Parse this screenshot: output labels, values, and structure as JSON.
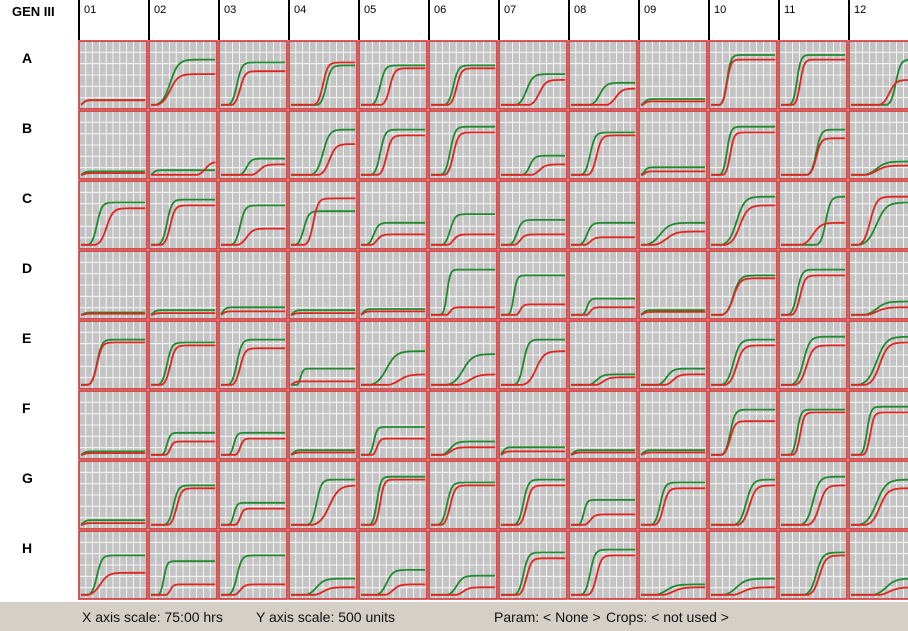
{
  "corner_label": "GEN III",
  "columns": [
    "01",
    "02",
    "03",
    "04",
    "05",
    "06",
    "07",
    "08",
    "09",
    "10",
    "11",
    "12"
  ],
  "rows": [
    "A",
    "B",
    "C",
    "D",
    "E",
    "F",
    "G",
    "H"
  ],
  "status": {
    "x_axis": "X axis scale: 75:00 hrs",
    "y_axis": "Y axis scale: 500 units",
    "param": "Param: < None >",
    "crops": "Crops: < not used >"
  },
  "colors": {
    "cell_bg": "#c4c4c4",
    "grid_line": "#ffffff",
    "cell_border": "#d23434",
    "curve_green": "#1f8a2e",
    "curve_red": "#e0251f",
    "status_bg": "#d4d0c8"
  },
  "curves": {
    "A": [
      [
        [
          0.03,
          0.1,
          0.1
        ],
        [
          0.03,
          0.1,
          0.1
        ]
      ],
      [
        [
          0.3,
          0.8,
          0.25
        ],
        [
          0.3,
          0.55,
          0.25
        ]
      ],
      [
        [
          0.25,
          0.75,
          0.15
        ],
        [
          0.3,
          0.6,
          0.15
        ]
      ],
      [
        [
          0.55,
          0.7,
          0.15
        ],
        [
          0.5,
          0.75,
          0.15
        ]
      ],
      [
        [
          0.3,
          0.7,
          0.15
        ],
        [
          0.45,
          0.65,
          0.15
        ]
      ],
      [
        [
          0.35,
          0.7,
          0.15
        ],
        [
          0.4,
          0.65,
          0.15
        ]
      ],
      [
        [
          0.4,
          0.55,
          0.2
        ],
        [
          0.6,
          0.45,
          0.2
        ]
      ],
      [
        [
          0.45,
          0.4,
          0.2
        ],
        [
          0.7,
          0.3,
          0.2
        ]
      ],
      [
        [
          0.05,
          0.12,
          0.1
        ],
        [
          0.05,
          0.08,
          0.1
        ]
      ],
      [
        [
          0.25,
          0.88,
          0.12
        ],
        [
          0.25,
          0.8,
          0.12
        ]
      ],
      [
        [
          0.25,
          0.88,
          0.12
        ],
        [
          0.3,
          0.8,
          0.12
        ]
      ],
      [
        [
          0.7,
          0.8,
          0.15
        ],
        [
          0.6,
          0.45,
          0.2
        ]
      ]
    ],
    "B": [
      [
        [
          0.03,
          0.08,
          0.1
        ],
        [
          0.03,
          0.05,
          0.1
        ]
      ],
      [
        [
          0.03,
          0.1,
          0.1
        ],
        [
          0.85,
          0.25,
          0.2
        ]
      ],
      [
        [
          0.4,
          0.3,
          0.15
        ],
        [
          0.6,
          0.2,
          0.2
        ]
      ],
      [
        [
          0.5,
          0.8,
          0.2
        ],
        [
          0.6,
          0.55,
          0.2
        ]
      ],
      [
        [
          0.3,
          0.8,
          0.15
        ],
        [
          0.4,
          0.7,
          0.15
        ]
      ],
      [
        [
          0.3,
          0.85,
          0.15
        ],
        [
          0.35,
          0.75,
          0.15
        ]
      ],
      [
        [
          0.45,
          0.35,
          0.15
        ],
        [
          0.6,
          0.2,
          0.2
        ]
      ],
      [
        [
          0.3,
          0.75,
          0.15
        ],
        [
          0.4,
          0.7,
          0.15
        ]
      ],
      [
        [
          0.05,
          0.15,
          0.1
        ],
        [
          0.05,
          0.08,
          0.1
        ]
      ],
      [
        [
          0.25,
          0.85,
          0.12
        ],
        [
          0.3,
          0.75,
          0.12
        ]
      ],
      [
        [
          0.55,
          0.8,
          0.15
        ],
        [
          0.55,
          0.65,
          0.15
        ]
      ],
      [
        [
          0.4,
          0.25,
          0.3
        ],
        [
          0.4,
          0.18,
          0.3
        ]
      ]
    ],
    "C": [
      [
        [
          0.25,
          0.75,
          0.15
        ],
        [
          0.4,
          0.65,
          0.2
        ]
      ],
      [
        [
          0.25,
          0.8,
          0.15
        ],
        [
          0.3,
          0.7,
          0.15
        ]
      ],
      [
        [
          0.3,
          0.7,
          0.15
        ],
        [
          0.4,
          0.3,
          0.2
        ]
      ],
      [
        [
          0.2,
          0.6,
          0.15
        ],
        [
          0.35,
          0.82,
          0.15
        ]
      ],
      [
        [
          0.2,
          0.4,
          0.15
        ],
        [
          0.25,
          0.2,
          0.15
        ]
      ],
      [
        [
          0.3,
          0.55,
          0.15
        ],
        [
          0.35,
          0.2,
          0.15
        ]
      ],
      [
        [
          0.25,
          0.45,
          0.15
        ],
        [
          0.3,
          0.2,
          0.15
        ]
      ],
      [
        [
          0.25,
          0.4,
          0.15
        ],
        [
          0.3,
          0.15,
          0.15
        ]
      ],
      [
        [
          0.3,
          0.4,
          0.3
        ],
        [
          0.4,
          0.25,
          0.3
        ]
      ],
      [
        [
          0.4,
          0.85,
          0.25
        ],
        [
          0.45,
          0.7,
          0.25
        ]
      ],
      [
        [
          0.7,
          0.85,
          0.15
        ],
        [
          0.5,
          0.4,
          0.25
        ]
      ],
      [
        [
          0.4,
          0.75,
          0.3
        ],
        [
          0.3,
          0.85,
          0.2
        ]
      ]
    ],
    "D": [
      [
        [
          0.03,
          0.06,
          0.1
        ],
        [
          0.03,
          0.04,
          0.1
        ]
      ],
      [
        [
          0.03,
          0.1,
          0.1
        ],
        [
          0.03,
          0.05,
          0.1
        ]
      ],
      [
        [
          0.03,
          0.15,
          0.1
        ],
        [
          0.03,
          0.08,
          0.1
        ]
      ],
      [
        [
          0.03,
          0.1,
          0.1
        ],
        [
          0.03,
          0.05,
          0.1
        ]
      ],
      [
        [
          0.03,
          0.12,
          0.1
        ],
        [
          0.03,
          0.08,
          0.1
        ]
      ],
      [
        [
          0.25,
          0.8,
          0.1
        ],
        [
          0.3,
          0.15,
          0.1
        ]
      ],
      [
        [
          0.2,
          0.7,
          0.1
        ],
        [
          0.3,
          0.2,
          0.1
        ]
      ],
      [
        [
          0.25,
          0.3,
          0.1
        ],
        [
          0.3,
          0.15,
          0.1
        ]
      ],
      [
        [
          0.03,
          0.1,
          0.1
        ],
        [
          0.03,
          0.07,
          0.1
        ]
      ],
      [
        [
          0.35,
          0.7,
          0.2
        ],
        [
          0.35,
          0.65,
          0.2
        ]
      ],
      [
        [
          0.25,
          0.8,
          0.15
        ],
        [
          0.3,
          0.7,
          0.15
        ]
      ],
      [
        [
          0.4,
          0.25,
          0.3
        ],
        [
          0.4,
          0.15,
          0.3
        ]
      ]
    ],
    "E": [
      [
        [
          0.25,
          0.8,
          0.15
        ],
        [
          0.25,
          0.75,
          0.15
        ]
      ],
      [
        [
          0.25,
          0.75,
          0.15
        ],
        [
          0.3,
          0.7,
          0.15
        ]
      ],
      [
        [
          0.25,
          0.8,
          0.15
        ],
        [
          0.3,
          0.65,
          0.15
        ]
      ],
      [
        [
          0.15,
          0.3,
          0.08
        ],
        [
          0.03,
          0.08,
          0.1
        ]
      ],
      [
        [
          0.4,
          0.6,
          0.3
        ],
        [
          0.6,
          0.2,
          0.3
        ]
      ],
      [
        [
          0.5,
          0.55,
          0.3
        ],
        [
          0.6,
          0.2,
          0.3
        ]
      ],
      [
        [
          0.35,
          0.8,
          0.15
        ],
        [
          0.55,
          0.6,
          0.25
        ]
      ],
      [
        [
          0.4,
          0.2,
          0.2
        ],
        [
          0.5,
          0.15,
          0.2
        ]
      ],
      [
        [
          0.4,
          0.3,
          0.2
        ],
        [
          0.5,
          0.2,
          0.2
        ]
      ],
      [
        [
          0.35,
          0.8,
          0.2
        ],
        [
          0.4,
          0.7,
          0.2
        ]
      ],
      [
        [
          0.35,
          0.85,
          0.2
        ],
        [
          0.4,
          0.7,
          0.2
        ]
      ],
      [
        [
          0.4,
          0.85,
          0.3
        ],
        [
          0.45,
          0.75,
          0.25
        ]
      ]
    ],
    "F": [
      [
        [
          0.03,
          0.08,
          0.1
        ],
        [
          0.03,
          0.05,
          0.1
        ]
      ],
      [
        [
          0.25,
          0.4,
          0.1
        ],
        [
          0.3,
          0.25,
          0.1
        ]
      ],
      [
        [
          0.2,
          0.4,
          0.1
        ],
        [
          0.3,
          0.3,
          0.1
        ]
      ],
      [
        [
          0.03,
          0.1,
          0.1
        ],
        [
          0.03,
          0.06,
          0.1
        ]
      ],
      [
        [
          0.2,
          0.5,
          0.1
        ],
        [
          0.25,
          0.3,
          0.1
        ]
      ],
      [
        [
          0.3,
          0.25,
          0.2
        ],
        [
          0.3,
          0.15,
          0.2
        ]
      ],
      [
        [
          0.03,
          0.15,
          0.1
        ],
        [
          0.03,
          0.08,
          0.1
        ]
      ],
      [
        [
          0.03,
          0.1,
          0.1
        ],
        [
          0.03,
          0.06,
          0.1
        ]
      ],
      [
        [
          0.03,
          0.1,
          0.1
        ],
        [
          0.03,
          0.06,
          0.1
        ]
      ],
      [
        [
          0.3,
          0.8,
          0.15
        ],
        [
          0.3,
          0.6,
          0.15
        ]
      ],
      [
        [
          0.25,
          0.8,
          0.12
        ],
        [
          0.3,
          0.75,
          0.12
        ]
      ],
      [
        [
          0.25,
          0.85,
          0.12
        ],
        [
          0.3,
          0.75,
          0.12
        ]
      ]
    ],
    "G": [
      [
        [
          0.03,
          0.1,
          0.1
        ],
        [
          0.03,
          0.05,
          0.1
        ]
      ],
      [
        [
          0.35,
          0.7,
          0.15
        ],
        [
          0.4,
          0.65,
          0.15
        ]
      ],
      [
        [
          0.2,
          0.4,
          0.1
        ],
        [
          0.3,
          0.3,
          0.1
        ]
      ],
      [
        [
          0.4,
          0.8,
          0.15
        ],
        [
          0.6,
          0.7,
          0.3
        ]
      ],
      [
        [
          0.25,
          0.85,
          0.12
        ],
        [
          0.3,
          0.8,
          0.12
        ]
      ],
      [
        [
          0.25,
          0.75,
          0.15
        ],
        [
          0.3,
          0.7,
          0.15
        ]
      ],
      [
        [
          0.35,
          0.8,
          0.15
        ],
        [
          0.4,
          0.7,
          0.15
        ]
      ],
      [
        [
          0.2,
          0.45,
          0.1
        ],
        [
          0.3,
          0.2,
          0.15
        ]
      ],
      [
        [
          0.3,
          0.75,
          0.15
        ],
        [
          0.35,
          0.65,
          0.15
        ]
      ],
      [
        [
          0.55,
          0.8,
          0.2
        ],
        [
          0.6,
          0.7,
          0.2
        ]
      ],
      [
        [
          0.5,
          0.85,
          0.2
        ],
        [
          0.6,
          0.7,
          0.2
        ]
      ],
      [
        [
          0.4,
          0.8,
          0.3
        ],
        [
          0.45,
          0.65,
          0.25
        ]
      ]
    ],
    "H": [
      [
        [
          0.25,
          0.7,
          0.15
        ],
        [
          0.3,
          0.4,
          0.25
        ]
      ],
      [
        [
          0.2,
          0.6,
          0.1
        ],
        [
          0.3,
          0.2,
          0.1
        ]
      ],
      [
        [
          0.25,
          0.7,
          0.15
        ],
        [
          0.3,
          0.2,
          0.15
        ]
      ],
      [
        [
          0.4,
          0.3,
          0.25
        ],
        [
          0.5,
          0.15,
          0.25
        ]
      ],
      [
        [
          0.4,
          0.45,
          0.2
        ],
        [
          0.5,
          0.2,
          0.2
        ]
      ],
      [
        [
          0.4,
          0.35,
          0.2
        ],
        [
          0.5,
          0.15,
          0.2
        ]
      ],
      [
        [
          0.35,
          0.75,
          0.15
        ],
        [
          0.4,
          0.65,
          0.15
        ]
      ],
      [
        [
          0.3,
          0.8,
          0.15
        ],
        [
          0.4,
          0.7,
          0.15
        ]
      ],
      [
        [
          0.4,
          0.2,
          0.3
        ],
        [
          0.5,
          0.15,
          0.3
        ]
      ],
      [
        [
          0.4,
          0.3,
          0.3
        ],
        [
          0.5,
          0.15,
          0.3
        ]
      ],
      [
        [
          0.55,
          0.75,
          0.2
        ],
        [
          0.6,
          0.7,
          0.2
        ]
      ],
      [
        [
          0.55,
          0.3,
          0.3
        ],
        [
          0.6,
          0.15,
          0.3
        ]
      ]
    ]
  }
}
